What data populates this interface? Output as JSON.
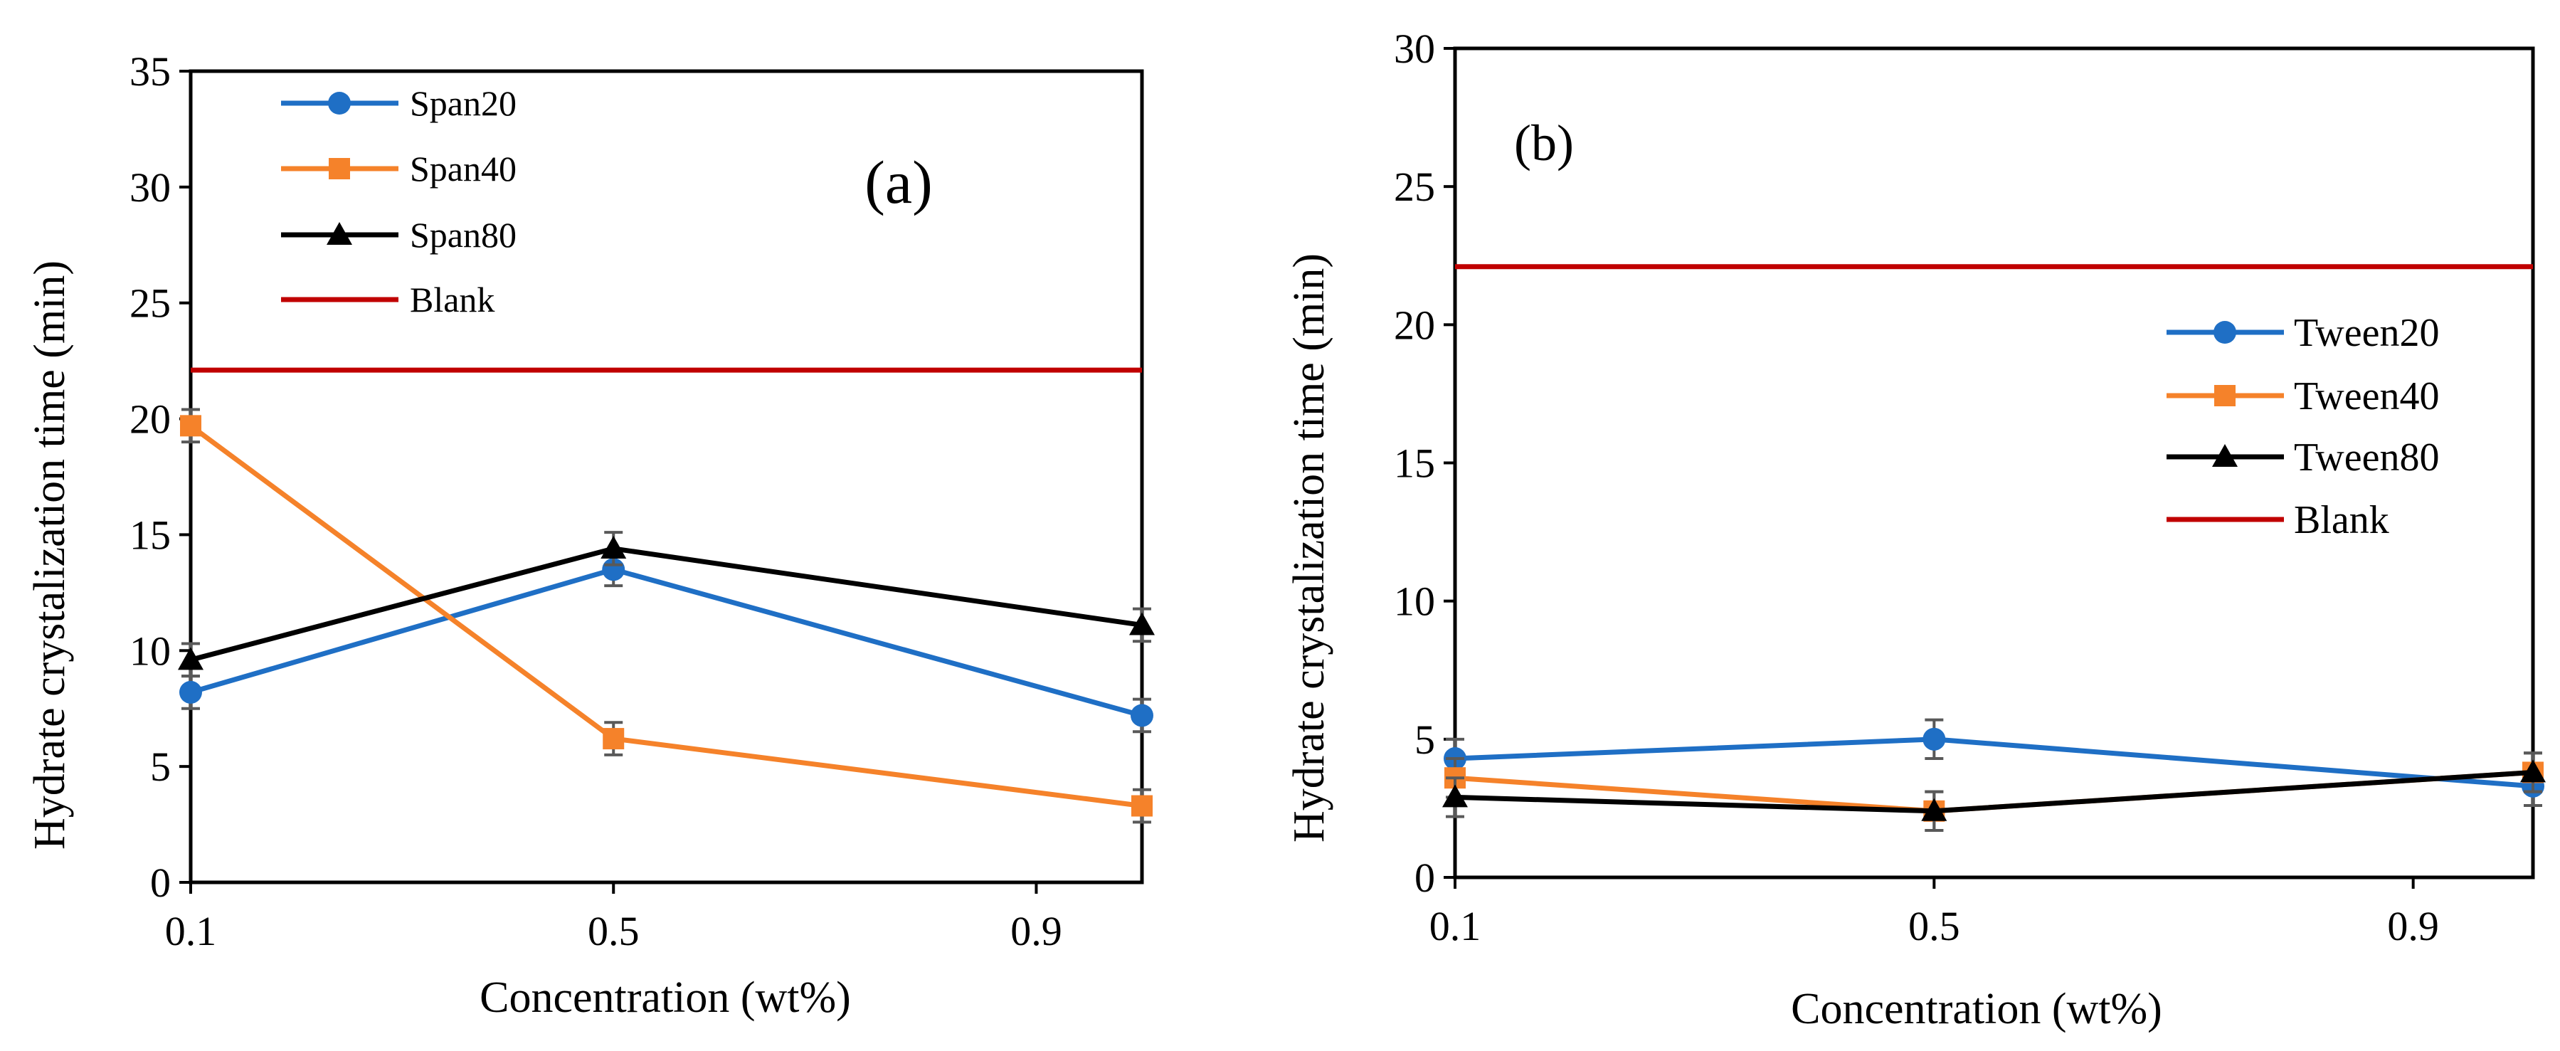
{
  "chart_data": [
    {
      "type": "line",
      "panel_label": "(a)",
      "xlabel": "Concentration (wt%)",
      "ylabel": "Hydrate crystalization time (min)",
      "x_ticks": [
        "0.1",
        "0.5",
        "0.9"
      ],
      "x": [
        0.1,
        0.5,
        1.0
      ],
      "xlim": [
        0.1,
        1.0
      ],
      "ylim": [
        0,
        35
      ],
      "y_ticks": [
        "0",
        "5",
        "10",
        "15",
        "20",
        "25",
        "30",
        "35"
      ],
      "legend_position": "top-left",
      "blank": {
        "name": "Blank",
        "value": 22.1,
        "color": "#c00000"
      },
      "series": [
        {
          "name": "Span20",
          "marker": "circle",
          "color": "#1f6fc5",
          "values": [
            8.2,
            13.5,
            7.2
          ],
          "errors": [
            0.7,
            0.7,
            0.7
          ]
        },
        {
          "name": "Span40",
          "marker": "square",
          "color": "#f5822a",
          "values": [
            19.7,
            6.2,
            3.3
          ],
          "errors": [
            0.7,
            0.7,
            0.7
          ]
        },
        {
          "name": "Span80",
          "marker": "triangle",
          "color": "#000000",
          "values": [
            9.6,
            14.4,
            11.1
          ],
          "errors": [
            0.7,
            0.7,
            0.7
          ]
        }
      ]
    },
    {
      "type": "line",
      "panel_label": "(b)",
      "xlabel": "Concentration (wt%)",
      "ylabel": "Hydrate crystalization time (min)",
      "x_ticks": [
        "0.1",
        "0.5",
        "0.9"
      ],
      "x": [
        0.1,
        0.5,
        1.0
      ],
      "xlim": [
        0.1,
        1.0
      ],
      "ylim": [
        0,
        30
      ],
      "y_ticks": [
        "0",
        "5",
        "10",
        "15",
        "20",
        "25",
        "30"
      ],
      "legend_position": "right",
      "blank": {
        "name": "Blank",
        "value": 22.1,
        "color": "#c00000"
      },
      "series": [
        {
          "name": "Tween20",
          "marker": "circle",
          "color": "#1f6fc5",
          "values": [
            4.3,
            5.0,
            3.3
          ],
          "errors": [
            0.7,
            0.7,
            0.7
          ]
        },
        {
          "name": "Tween40",
          "marker": "square",
          "color": "#f5822a",
          "values": [
            3.6,
            2.4,
            3.8
          ],
          "errors": [
            0.7,
            0.7,
            0.7
          ]
        },
        {
          "name": "Tween80",
          "marker": "triangle",
          "color": "#000000",
          "values": [
            2.9,
            2.4,
            3.8
          ],
          "errors": [
            0.7,
            0.7,
            0.7
          ]
        }
      ]
    }
  ]
}
